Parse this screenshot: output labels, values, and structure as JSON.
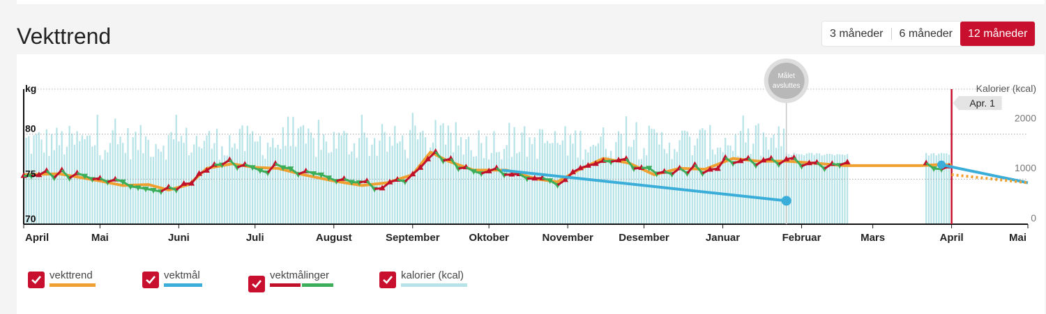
{
  "page": {
    "title": "Vekttrend",
    "range_buttons": [
      "3 måneder",
      "6 måneder",
      "12 måneder"
    ],
    "active_range": "12 måneder"
  },
  "legend": [
    {
      "label": "vekttrend",
      "colors": [
        "#f0a030"
      ]
    },
    {
      "label": "vektmål",
      "colors": [
        "#3aaed8"
      ]
    },
    {
      "label": "vektmålinger",
      "colors": [
        "#c0102a",
        "#3cae5a"
      ]
    },
    {
      "label": "kalorier (kcal)",
      "colors": [
        "#b5e3e8"
      ]
    }
  ],
  "colors": {
    "trend": "#f0a030",
    "goal": "#3aaed8",
    "up": "#c0102a",
    "down": "#3cae5a",
    "calories": "#b5e3e8",
    "today": "#c8102e",
    "accent": "#c8102e"
  },
  "chart_data": {
    "type": "line",
    "y_left": {
      "label": "kg",
      "ticks": [
        "70",
        "75",
        "80"
      ],
      "range": [
        70,
        85
      ]
    },
    "y_right": {
      "label": "Kalorier (kcal)",
      "ticks": [
        "0",
        "1000",
        "2000"
      ],
      "range": [
        0,
        2700
      ]
    },
    "x_labels": [
      "April",
      "Mai",
      "Juni",
      "Juli",
      "August",
      "September",
      "Oktober",
      "November",
      "Desember",
      "Januar",
      "Februar",
      "Mars",
      "April",
      "Mai"
    ],
    "x_label_dates": [
      "2017-04-01",
      "2017-05-01",
      "2017-06-01",
      "2017-07-01",
      "2017-08-01",
      "2017-09-01",
      "2017-10-01",
      "2017-11-01",
      "2017-12-01",
      "2018-01-01",
      "2018-02-01",
      "2018-03-01",
      "2018-04-01",
      "2018-05-01"
    ],
    "x_range": [
      "2017-04-01",
      "2018-05-01"
    ],
    "today_marker": {
      "label": "Apr. 1",
      "date": "2018-04-01"
    },
    "goal_end_marker": {
      "label_line1": "Målet",
      "label_line2": "avsluttes",
      "date": "2018-01-26"
    },
    "series": [
      {
        "name": "vekttrend",
        "points": [
          [
            "2017-04-01",
            75.5
          ],
          [
            "2017-04-15",
            75.6
          ],
          [
            "2017-05-01",
            74.8
          ],
          [
            "2017-05-10",
            74.3
          ],
          [
            "2017-05-20",
            74.4
          ],
          [
            "2017-05-28",
            73.8
          ],
          [
            "2017-06-05",
            74.4
          ],
          [
            "2017-06-12",
            76.2
          ],
          [
            "2017-06-22",
            76.7
          ],
          [
            "2017-07-01",
            76.3
          ],
          [
            "2017-07-10",
            76.2
          ],
          [
            "2017-07-20",
            75.5
          ],
          [
            "2017-08-01",
            74.8
          ],
          [
            "2017-08-12",
            74.3
          ],
          [
            "2017-08-22",
            74.6
          ],
          [
            "2017-09-01",
            75.5
          ],
          [
            "2017-09-08",
            78.0
          ],
          [
            "2017-09-15",
            77.0
          ],
          [
            "2017-09-25",
            76.0
          ],
          [
            "2017-10-08",
            76.0
          ],
          [
            "2017-10-20",
            75.0
          ],
          [
            "2017-10-28",
            74.7
          ],
          [
            "2017-11-05",
            76.0
          ],
          [
            "2017-11-15",
            77.3
          ],
          [
            "2017-11-25",
            76.8
          ],
          [
            "2017-12-05",
            75.5
          ],
          [
            "2017-12-15",
            76.2
          ],
          [
            "2017-12-25",
            76.1
          ],
          [
            "2018-01-05",
            77.3
          ],
          [
            "2018-01-15",
            77.0
          ],
          [
            "2018-01-26",
            77.0
          ],
          [
            "2018-02-05",
            76.8
          ],
          [
            "2018-02-18",
            76.5
          ],
          [
            "2018-03-01",
            76.5
          ],
          [
            "2018-03-20",
            76.5
          ],
          [
            "2018-03-26",
            76.6
          ],
          [
            "2018-04-01",
            76.6
          ]
        ],
        "projection": [
          [
            "2018-04-01",
            75.5
          ],
          [
            "2018-05-01",
            74.6
          ]
        ]
      },
      {
        "name": "vektmål",
        "points": [
          [
            "2017-10-06",
            76.0
          ],
          [
            "2018-01-26",
            72.6
          ]
        ],
        "second_points": [
          [
            "2018-03-28",
            76.6
          ],
          [
            "2018-05-01",
            74.6
          ]
        ]
      }
    ],
    "measurement_range": {
      "start": "2017-04-01",
      "end": "2018-02-19",
      "extra_start": "2018-03-22",
      "extra_end": "2018-04-01"
    },
    "calories": {
      "typical_kcal": 1600,
      "peak_kcal": 2250,
      "after_goal_kcal": 1400,
      "period": [
        "2017-04-01",
        "2018-02-19"
      ],
      "extra_period": [
        "2018-03-22",
        "2018-04-01"
      ]
    }
  }
}
